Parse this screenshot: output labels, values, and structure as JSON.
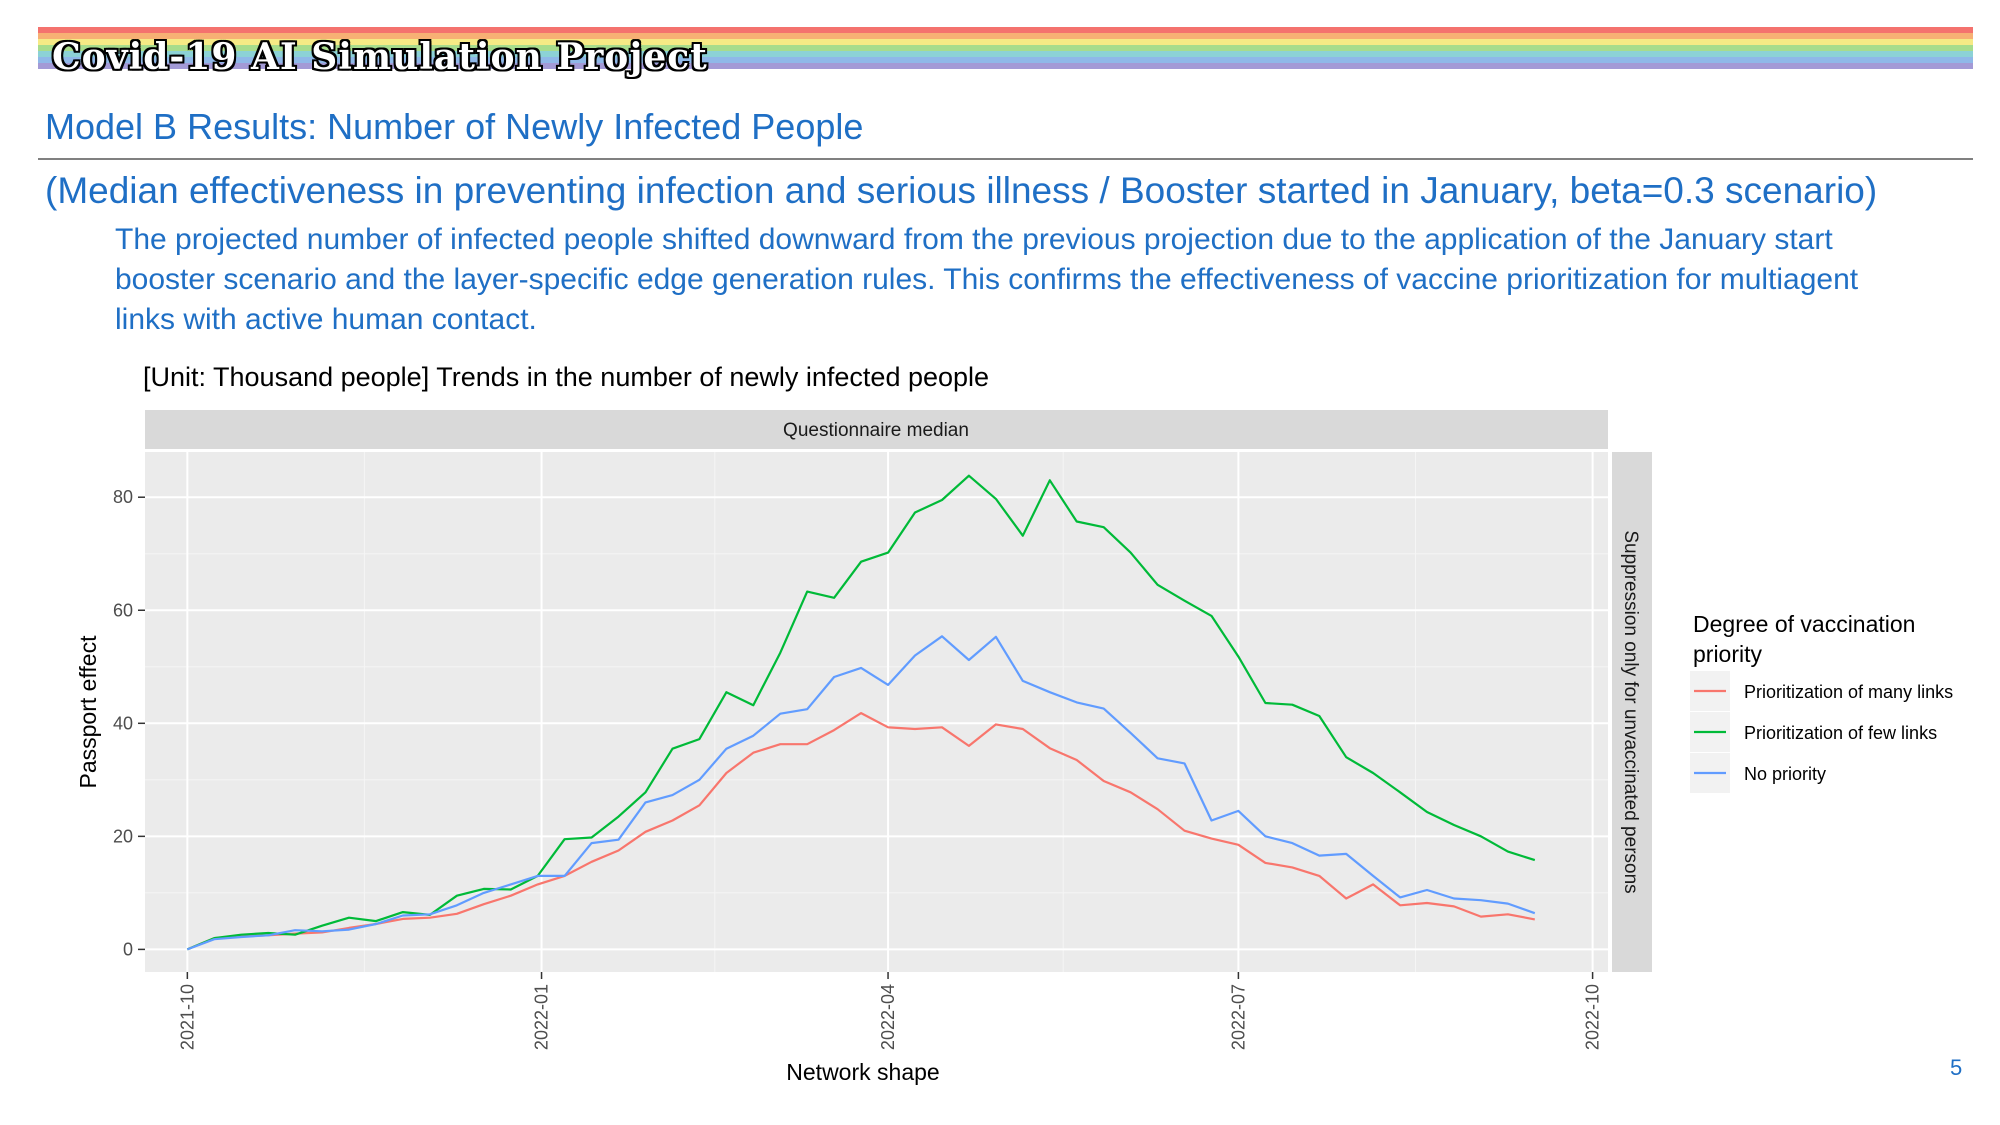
{
  "header": {
    "project_title": "Covid-19 AI Simulation Project",
    "rainbow_colors": [
      "#f4726e",
      "#f7b074",
      "#f6ea85",
      "#a8dc8c",
      "#8cd2d6",
      "#8fb8e8",
      "#a39ad6"
    ]
  },
  "slide": {
    "title": "Model B Results: Number of Newly Infected People",
    "scenario": "(Median effectiveness in preventing infection and serious illness / Booster started in January, beta=0.3 scenario)",
    "description": "The projected number of infected people shifted downward from the previous projection due to the application of the January start booster scenario and the layer-specific edge generation rules. This confirms the effectiveness of vaccine prioritization for multiagent links with active human contact.",
    "chart_heading": "[Unit: Thousand people] Trends in the number of newly infected people",
    "page_number": "5"
  },
  "chart_data": {
    "type": "line",
    "facet_top": "Questionnaire median",
    "facet_right": "Suppression only for unvaccinated persons",
    "xlabel": "Network shape",
    "ylabel": "Passport effect",
    "x_tick_labels": [
      "2021-10",
      "2022-01",
      "2022-04",
      "2022-07",
      "2022-10"
    ],
    "y_ticks": [
      0,
      20,
      40,
      60,
      80
    ],
    "ylim": [
      -4,
      88
    ],
    "legend_title": "Degree of vaccination priority",
    "legend_position": "right",
    "grid": true,
    "x_dates": [
      "2021-10-01",
      "2021-10-08",
      "2021-10-15",
      "2021-10-22",
      "2021-10-29",
      "2021-11-05",
      "2021-11-12",
      "2021-11-19",
      "2021-11-26",
      "2021-12-03",
      "2021-12-10",
      "2021-12-17",
      "2021-12-24",
      "2021-12-31",
      "2022-01-07",
      "2022-01-14",
      "2022-01-21",
      "2022-01-28",
      "2022-02-04",
      "2022-02-11",
      "2022-02-18",
      "2022-02-25",
      "2022-03-04",
      "2022-03-11",
      "2022-03-18",
      "2022-03-25",
      "2022-04-01",
      "2022-04-08",
      "2022-04-15",
      "2022-04-22",
      "2022-04-29",
      "2022-05-06",
      "2022-05-13",
      "2022-05-20",
      "2022-05-27",
      "2022-06-03",
      "2022-06-10",
      "2022-06-17",
      "2022-06-24",
      "2022-07-01",
      "2022-07-08",
      "2022-07-15",
      "2022-07-22",
      "2022-07-29",
      "2022-08-05",
      "2022-08-12",
      "2022-08-19",
      "2022-08-26",
      "2022-09-02",
      "2022-09-09",
      "2022-09-16"
    ],
    "series": [
      {
        "name": "Prioritization of many links",
        "color": "#f8766d",
        "values": [
          0,
          2.0,
          2.3,
          2.5,
          2.8,
          3.0,
          3.8,
          4.5,
          5.4,
          5.6,
          6.3,
          8.0,
          9.5,
          11.5,
          13.0,
          15.5,
          17.5,
          20.8,
          22.8,
          25.5,
          31.2,
          34.8,
          36.3,
          36.3,
          38.8,
          41.8,
          39.3,
          39.0,
          39.3,
          36.0,
          39.8,
          39.0,
          35.6,
          33.5,
          29.8,
          27.8,
          24.8,
          21.0,
          19.6,
          18.5,
          15.3,
          14.5,
          13.0,
          9.0,
          11.5,
          7.8,
          8.2,
          7.6,
          5.8,
          6.2,
          5.3
        ]
      },
      {
        "name": "Prioritization of few links",
        "color": "#00ba38",
        "values": [
          0,
          2.0,
          2.6,
          2.9,
          2.6,
          4.2,
          5.6,
          5.0,
          6.6,
          6.1,
          9.5,
          10.7,
          10.6,
          13.0,
          19.5,
          19.8,
          23.5,
          27.8,
          35.5,
          37.2,
          45.5,
          43.2,
          52.5,
          63.3,
          62.2,
          68.6,
          70.2,
          77.3,
          79.5,
          83.8,
          79.7,
          73.2,
          83.0,
          75.7,
          74.7,
          70.2,
          64.5,
          61.7,
          59.0,
          51.8,
          43.6,
          43.3,
          41.3,
          34.0,
          31.2,
          27.8,
          24.3,
          22.0,
          20.0,
          17.3,
          15.8
        ]
      },
      {
        "name": "No priority",
        "color": "#619cff",
        "values": [
          0,
          1.8,
          2.2,
          2.5,
          3.4,
          3.2,
          3.5,
          4.5,
          6.0,
          6.2,
          7.8,
          10.0,
          11.5,
          13.0,
          13.0,
          18.8,
          19.4,
          26.0,
          27.3,
          30.0,
          35.5,
          37.8,
          41.7,
          42.5,
          48.2,
          49.8,
          46.8,
          52.0,
          55.4,
          51.2,
          55.3,
          47.5,
          45.5,
          43.7,
          42.6,
          38.3,
          33.8,
          32.9,
          22.8,
          24.5,
          20.0,
          18.8,
          16.6,
          16.9,
          13.0,
          9.2,
          10.5,
          9.0,
          8.7,
          8.1,
          6.4
        ]
      }
    ]
  }
}
